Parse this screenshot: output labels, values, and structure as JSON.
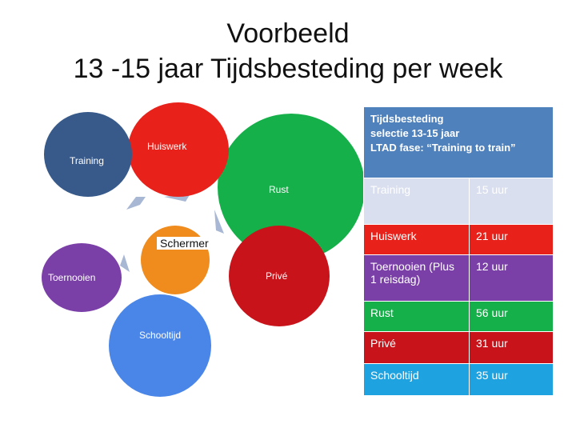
{
  "title_line1": "Voorbeeld",
  "title_line2": "13 -15 jaar Tijdsbesteding per week",
  "circles": {
    "training": "Training",
    "huiswerk": "Huiswerk",
    "rust": "Rust",
    "schermer": "Schermer",
    "toernooien": "Toernooien",
    "prive": "Privé",
    "schooltijd": "Schooltijd"
  },
  "table": {
    "header": [
      "Tijdsbesteding",
      "selectie 13-15 jaar",
      "LTAD fase: “Training to train”"
    ],
    "rows": [
      {
        "activity": "Training",
        "hours": "15 uur",
        "color": "#d9dfee"
      },
      {
        "activity": "Huiswerk",
        "hours": "21 uur",
        "color": "#e8221b"
      },
      {
        "activity": "Toernooien (Plus 1 reisdag)",
        "hours": "12 uur",
        "color": "#7b3fa8"
      },
      {
        "activity": "Rust",
        "hours": "56 uur",
        "color": "#16b04a"
      },
      {
        "activity": "Privé",
        "hours": "31 uur",
        "color": "#c8131a"
      },
      {
        "activity": "Schooltijd",
        "hours": "35 uur",
        "color": "#1fa2e0"
      }
    ]
  },
  "colors": {
    "training": "#375a8a",
    "huiswerk": "#e8221b",
    "rust": "#16b04a",
    "schermer": "#f08c1e",
    "toernooien": "#7b3fa8",
    "prive": "#c8131a",
    "schooltijd": "#4a86e8",
    "header": "#4f81bd"
  }
}
